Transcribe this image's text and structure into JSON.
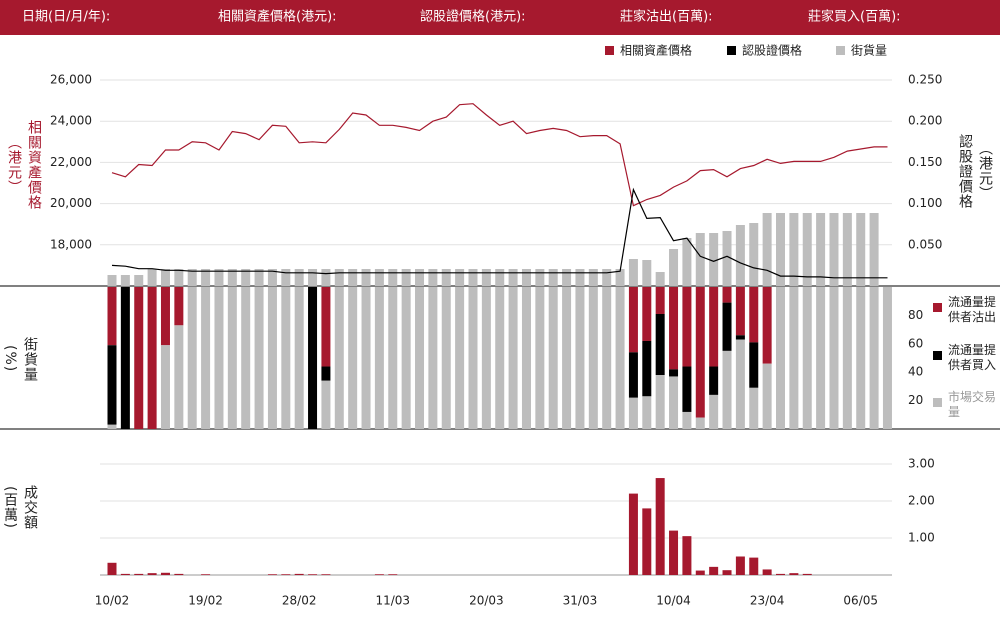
{
  "header": {
    "labels": [
      "日期(日/月/年):",
      "相關資產價格(港元):",
      "認股證價格(港元):",
      "莊家沽出(百萬):",
      "莊家買入(百萬):"
    ]
  },
  "chart_data": [
    {
      "type": "line",
      "y_label": "相關資產價格（港元）",
      "y2_label": "認股證價格（港元）",
      "ylim": [
        16000,
        26000
      ],
      "yticks": [
        {
          "value": 18000,
          "label": "18,000"
        },
        {
          "value": 20000,
          "label": "20,000"
        },
        {
          "value": 22000,
          "label": "22,000"
        },
        {
          "value": 24000,
          "label": "24,000"
        },
        {
          "value": 26000,
          "label": "26,000"
        }
      ],
      "y2lim": [
        0,
        0.25
      ],
      "y2ticks": [
        {
          "value": 0.05,
          "label": "0.050"
        },
        {
          "value": 0.1,
          "label": "0.100"
        },
        {
          "value": 0.15,
          "label": "0.150"
        },
        {
          "value": 0.2,
          "label": "0.200"
        },
        {
          "value": 0.25,
          "label": "0.250"
        }
      ],
      "grid": true,
      "series": [
        {
          "name": "相關資產價格",
          "color": "#a6192e",
          "axis": "y",
          "values": [
            21500,
            21300,
            21900,
            21850,
            22600,
            22600,
            23000,
            22950,
            22600,
            23500,
            23400,
            23100,
            23800,
            23750,
            22950,
            23000,
            22950,
            23600,
            24400,
            24300,
            23800,
            23800,
            23700,
            23550,
            24000,
            24200,
            24800,
            24850,
            24300,
            23800,
            24000,
            23400,
            23550,
            23650,
            23550,
            23250,
            23300,
            23300,
            22900,
            19900,
            20200,
            20400,
            20800,
            21100,
            21600,
            21650,
            21300,
            21700,
            21850,
            22150,
            21950,
            22050,
            22050,
            22050,
            22250,
            22550,
            22650,
            22750,
            22750
          ]
        },
        {
          "name": "認股證價格",
          "color": "#000000",
          "axis": "y2",
          "values": [
            0.025,
            0.024,
            0.021,
            0.021,
            0.019,
            0.019,
            0.018,
            0.018,
            0.018,
            0.018,
            0.018,
            0.018,
            0.018,
            0.016,
            0.016,
            0.016,
            0.015,
            0.016,
            0.016,
            0.016,
            0.016,
            0.016,
            0.016,
            0.016,
            0.016,
            0.016,
            0.016,
            0.016,
            0.016,
            0.016,
            0.016,
            0.016,
            0.016,
            0.016,
            0.016,
            0.016,
            0.016,
            0.016,
            0.018,
            0.117,
            0.082,
            0.083,
            0.055,
            0.058,
            0.036,
            0.03,
            0.036,
            0.028,
            0.022,
            0.019,
            0.012,
            0.012,
            0.011,
            0.011,
            0.01,
            0.01,
            0.01,
            0.01,
            0.01
          ]
        },
        {
          "name": "街貨量",
          "color": "#bdbdbd",
          "type": "bar",
          "values": [
            11,
            11,
            11,
            17,
            17,
            17,
            17,
            17,
            17,
            17,
            17,
            17,
            17,
            17,
            17,
            17,
            17,
            17,
            17,
            17,
            17,
            17,
            17,
            17,
            17,
            17,
            17,
            17,
            17,
            17,
            17,
            17,
            17,
            17,
            17,
            17,
            17,
            17,
            17,
            27,
            26,
            14,
            37,
            48,
            53,
            53,
            55,
            61,
            63,
            73,
            73,
            73,
            73,
            73,
            73,
            73,
            73,
            73,
            null
          ]
        }
      ]
    },
    {
      "type": "bar",
      "stacked": true,
      "y_label": "街貨量(%)",
      "ylim": [
        0,
        100
      ],
      "yticks": [
        20,
        40,
        60,
        80
      ],
      "series": [
        {
          "name": "流通量提供者沽出",
          "color": "#a6192e",
          "values": [
            41,
            0,
            100,
            100,
            41,
            27,
            0,
            0,
            0,
            0,
            0,
            0,
            0,
            0,
            0,
            0,
            56,
            0,
            0,
            0,
            0,
            0,
            0,
            0,
            0,
            0,
            0,
            0,
            0,
            0,
            0,
            0,
            0,
            0,
            0,
            0,
            0,
            0,
            0,
            46,
            38,
            19,
            58,
            56,
            92,
            56,
            11,
            34,
            39,
            54,
            0,
            0,
            0,
            0,
            0,
            0,
            0,
            0,
            0
          ]
        },
        {
          "name": "流通量提供者買入",
          "color": "#000000",
          "values": [
            56,
            100,
            0,
            0,
            0,
            0,
            0,
            0,
            0,
            0,
            0,
            0,
            0,
            0,
            0,
            100,
            10,
            0,
            0,
            0,
            0,
            0,
            0,
            0,
            0,
            0,
            0,
            0,
            0,
            0,
            0,
            0,
            0,
            0,
            0,
            0,
            0,
            0,
            0,
            32,
            39,
            43,
            5,
            32,
            0,
            20,
            34,
            3,
            32,
            0,
            0,
            0,
            0,
            0,
            0,
            0,
            0,
            0,
            0
          ]
        },
        {
          "name": "市場交易量",
          "color": "#bdbdbd",
          "values": [
            3,
            0,
            0,
            0,
            59,
            73,
            100,
            100,
            100,
            100,
            100,
            100,
            100,
            100,
            100,
            0,
            34,
            100,
            100,
            100,
            100,
            100,
            100,
            100,
            100,
            100,
            100,
            100,
            100,
            100,
            100,
            100,
            100,
            100,
            100,
            100,
            100,
            100,
            100,
            22,
            23,
            38,
            37,
            12,
            8,
            24,
            55,
            63,
            29,
            46,
            100,
            100,
            100,
            100,
            100,
            100,
            100,
            100,
            100
          ]
        }
      ]
    },
    {
      "type": "bar",
      "y_label": "成交額(百萬)",
      "ylim": [
        0,
        3
      ],
      "yticks": [
        {
          "value": 1,
          "label": "1.00"
        },
        {
          "value": 2,
          "label": "2.00"
        },
        {
          "value": 3,
          "label": "3.00"
        }
      ],
      "grid": true,
      "color": "#a6192e",
      "categories": [
        "10/02",
        null,
        null,
        null,
        null,
        null,
        null,
        "19/02",
        null,
        null,
        null,
        null,
        null,
        null,
        "28/02",
        null,
        null,
        null,
        null,
        null,
        null,
        "11/03",
        null,
        null,
        null,
        null,
        null,
        null,
        "20/03",
        null,
        null,
        null,
        null,
        null,
        null,
        "31/03",
        null,
        null,
        null,
        null,
        null,
        null,
        "10/04",
        null,
        null,
        null,
        null,
        null,
        null,
        "23/04",
        null,
        null,
        null,
        null,
        null,
        null,
        "06/05",
        null,
        null
      ],
      "values": [
        0.33,
        0.03,
        0.03,
        0.05,
        0.06,
        0.03,
        0,
        0.02,
        0,
        0,
        0,
        0,
        0.02,
        0.02,
        0.03,
        0.02,
        0.02,
        0,
        0,
        0,
        0.02,
        0.02,
        0,
        0,
        0,
        0,
        0,
        0,
        0,
        0,
        0,
        0,
        0,
        0,
        0,
        0,
        0,
        0,
        0,
        2.2,
        1.8,
        2.62,
        1.2,
        1.05,
        0.12,
        0.22,
        0.13,
        0.5,
        0.47,
        0.15,
        0.03,
        0.05,
        0.03,
        0,
        0,
        0,
        0,
        0,
        0
      ]
    }
  ]
}
